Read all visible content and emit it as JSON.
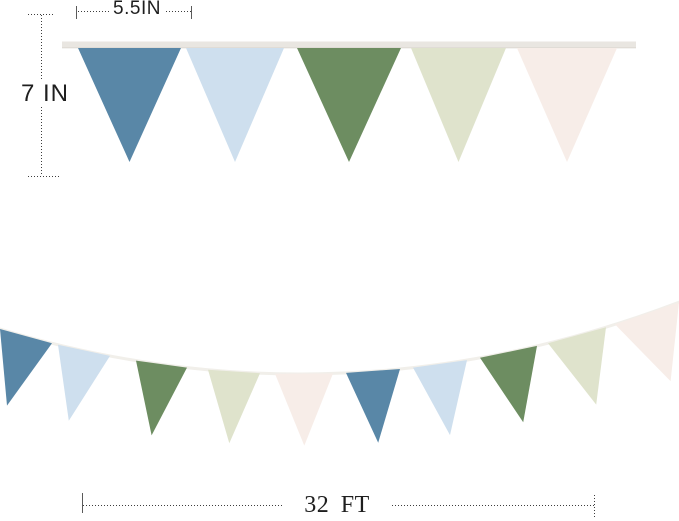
{
  "dimension_labels": {
    "flag_width": "5.5IN",
    "flag_height": "7 IN",
    "banner_length": "32 FT"
  },
  "palette": {
    "dusty_blue": "#5987A7",
    "light_blue": "#CEDFEE",
    "sage_green": "#6D8D61",
    "pale_sage": "#DFE3CC",
    "cream": "#F7EDE8",
    "ribbon_gray": "#E9E6E1",
    "ribbon_shadow": "#DCD8D1",
    "string_white": "#F1EFEA",
    "dimension_line": "#3D3D3D",
    "label_text": "#1E1E1E"
  },
  "top_banner": {
    "flag_count": 5,
    "flag_colors": [
      "dusty_blue",
      "light_blue",
      "sage_green",
      "pale_sage",
      "cream"
    ]
  },
  "bottom_banner": {
    "flag_count": 10,
    "flag_colors": [
      "dusty_blue",
      "light_blue",
      "sage_green",
      "pale_sage",
      "cream",
      "dusty_blue",
      "light_blue",
      "sage_green",
      "pale_sage",
      "cream"
    ]
  }
}
